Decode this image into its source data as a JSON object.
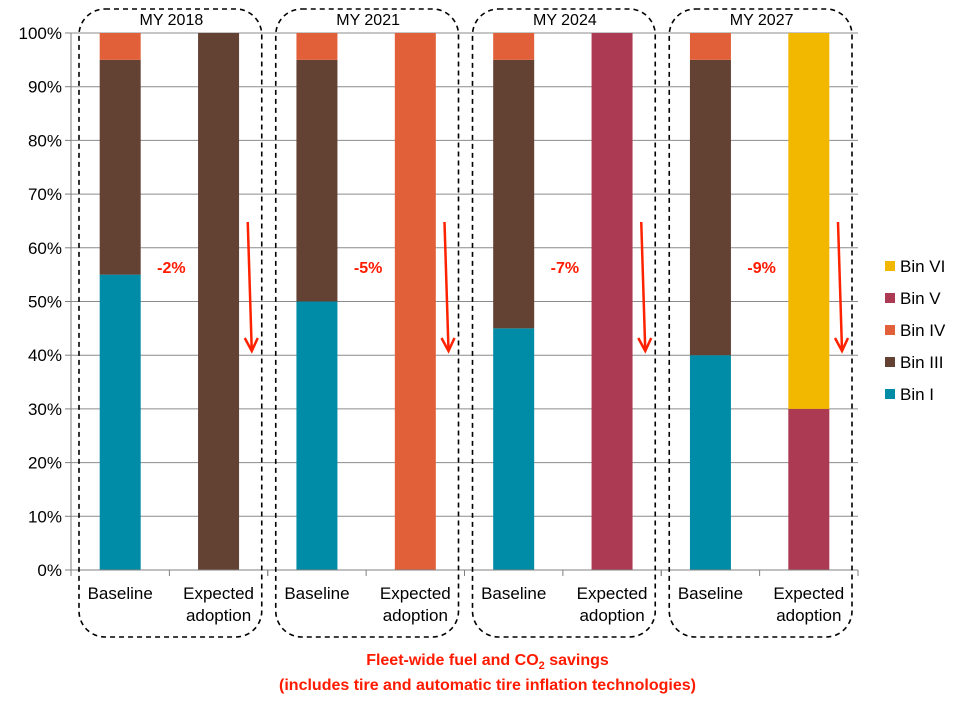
{
  "chart_data": {
    "type": "bar",
    "stacked": true,
    "groups": [
      {
        "label": "MY 2018",
        "saving": "-2%",
        "bars": [
          {
            "category": "Baseline",
            "values": {
              "Bin I": 55,
              "Bin III": 40,
              "Bin IV": 5,
              "Bin V": 0,
              "Bin VI": 0
            }
          },
          {
            "category": [
              "Expected",
              "adoption"
            ],
            "values": {
              "Bin I": 0,
              "Bin III": 100,
              "Bin IV": 0,
              "Bin V": 0,
              "Bin VI": 0
            }
          }
        ]
      },
      {
        "label": "MY 2021",
        "saving": "-5%",
        "bars": [
          {
            "category": "Baseline",
            "values": {
              "Bin I": 50,
              "Bin III": 45,
              "Bin IV": 5,
              "Bin V": 0,
              "Bin VI": 0
            }
          },
          {
            "category": [
              "Expected",
              "adoption"
            ],
            "values": {
              "Bin I": 0,
              "Bin III": 0,
              "Bin IV": 100,
              "Bin V": 0,
              "Bin VI": 0
            }
          }
        ]
      },
      {
        "label": "MY 2024",
        "saving": "-7%",
        "bars": [
          {
            "category": "Baseline",
            "values": {
              "Bin I": 45,
              "Bin III": 50,
              "Bin IV": 5,
              "Bin V": 0,
              "Bin VI": 0
            }
          },
          {
            "category": [
              "Expected",
              "adoption"
            ],
            "values": {
              "Bin I": 0,
              "Bin III": 0,
              "Bin IV": 0,
              "Bin V": 100,
              "Bin VI": 0
            }
          }
        ]
      },
      {
        "label": "MY 2027",
        "saving": "-9%",
        "bars": [
          {
            "category": "Baseline",
            "values": {
              "Bin I": 40,
              "Bin III": 55,
              "Bin IV": 5,
              "Bin V": 0,
              "Bin VI": 0
            }
          },
          {
            "category": [
              "Expected",
              "adoption"
            ],
            "values": {
              "Bin I": 0,
              "Bin III": 0,
              "Bin IV": 0,
              "Bin V": 30,
              "Bin VI": 70
            }
          }
        ]
      }
    ],
    "series": [
      {
        "name": "Bin I",
        "color": "#008ba6"
      },
      {
        "name": "Bin III",
        "color": "#634133"
      },
      {
        "name": "Bin IV",
        "color": "#e1603a"
      },
      {
        "name": "Bin V",
        "color": "#ac3a52"
      },
      {
        "name": "Bin VI",
        "color": "#f2b800"
      }
    ],
    "legend_order": [
      "Bin VI",
      "Bin V",
      "Bin IV",
      "Bin III",
      "Bin I"
    ],
    "legend_position": "right",
    "ylim": [
      0,
      100
    ],
    "yticks": [
      "0%",
      "10%",
      "20%",
      "30%",
      "40%",
      "50%",
      "60%",
      "70%",
      "80%",
      "90%",
      "100%"
    ],
    "grid": true,
    "arrow_color": "#ff2200"
  },
  "footnote": {
    "line1_before": "Fleet-wide fuel and CO",
    "line1_sub": "2",
    "line1_after": " savings",
    "line2": "(includes tire and automatic tire inflation technologies)"
  }
}
